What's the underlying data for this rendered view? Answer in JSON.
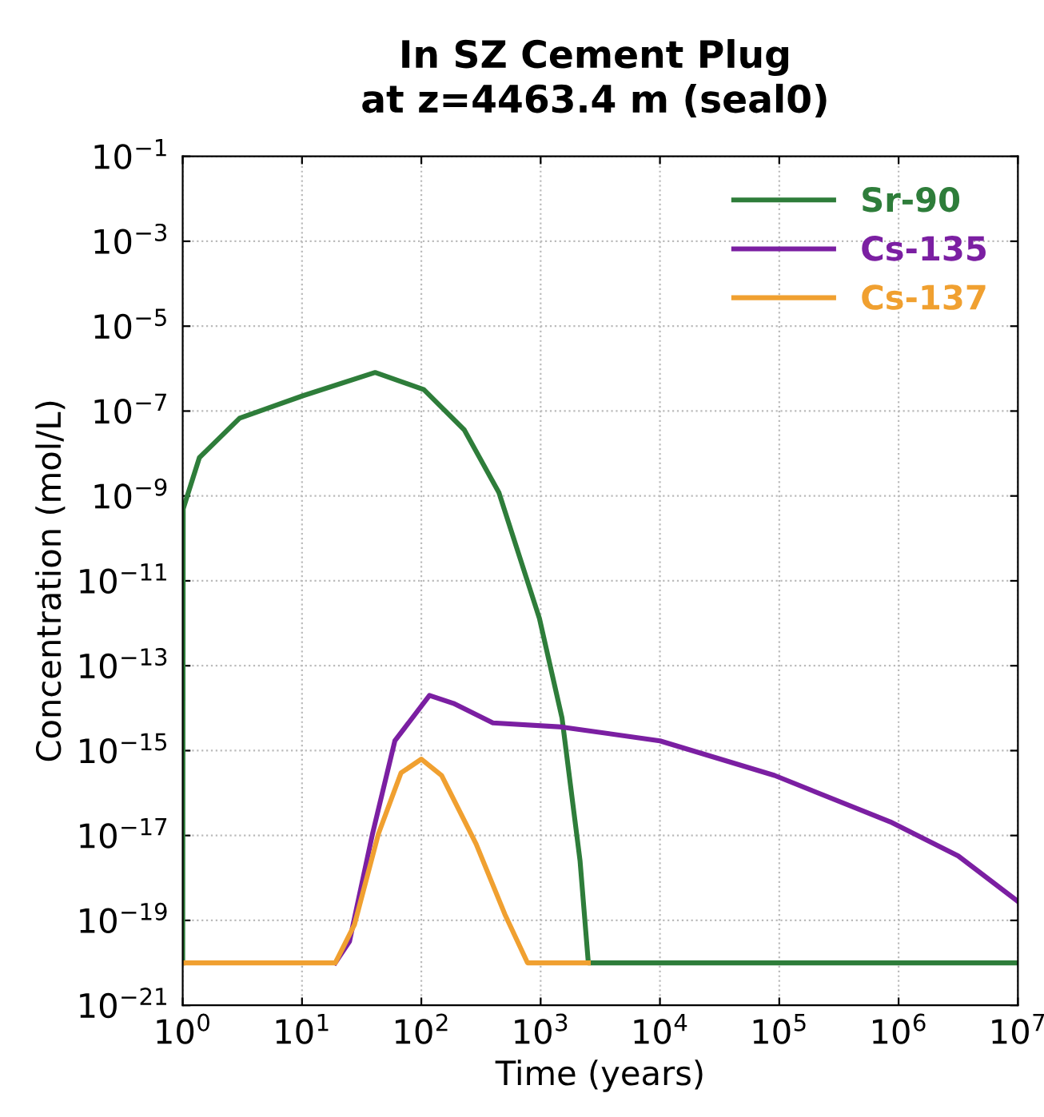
{
  "chart_data": {
    "type": "line",
    "title": "In SZ Cement Plug",
    "subtitle": "at z=4463.4 m (seal0)",
    "xlabel": "Time (years)",
    "ylabel": "Concentration (mol/L)",
    "log": "xy",
    "grid": true,
    "legend": "top right",
    "line_style": "solid",
    "marker": "none",
    "xlim": [
      1,
      10000000
    ],
    "ylim": [
      1e-21,
      0.1
    ],
    "xticks": [
      {
        "value": 1,
        "label": "10$^{0}$"
      },
      {
        "value": 10,
        "label": "10$^{1}$"
      },
      {
        "value": 100,
        "label": "10$^{2}$"
      },
      {
        "value": 1000,
        "label": "10$^{3}$"
      },
      {
        "value": 10000,
        "label": "10$^{4}$"
      },
      {
        "value": 100000,
        "label": "10$^{5}$"
      },
      {
        "value": 1000000,
        "label": "10$^{6}$"
      },
      {
        "value": 10000000,
        "label": "10$^{7}$"
      }
    ],
    "yticks": [
      {
        "value": 1e-21,
        "label": "10$^{−21}$"
      },
      {
        "value": 1e-19,
        "label": "10$^{−19}$"
      },
      {
        "value": 1e-17,
        "label": "10$^{−17}$"
      },
      {
        "value": 1e-15,
        "label": "10$^{−15}$"
      },
      {
        "value": 1e-13,
        "label": "10$^{−13}$"
      },
      {
        "value": 1e-11,
        "label": "10$^{−11}$"
      },
      {
        "value": 1e-09,
        "label": "10$^{−9}$"
      },
      {
        "value": 1e-07,
        "label": "10$^{−7}$"
      },
      {
        "value": 1e-05,
        "label": "10$^{−5}$"
      },
      {
        "value": 0.001,
        "label": "10$^{−3}$"
      },
      {
        "value": 0.1,
        "label": "10$^{−1}$"
      }
    ],
    "series": [
      {
        "name": "Sr-90",
        "color": "#2e7d3a",
        "x": [
          1,
          1.01,
          1.38,
          3.0,
          10.2,
          41,
          105,
          229,
          447,
          977,
          1510,
          2140,
          2510,
          10000000
        ],
        "values": [
          1e-20,
          5e-10,
          8e-09,
          6.8e-08,
          2.3e-07,
          8.1e-07,
          3.2e-07,
          3.6e-08,
          1.2e-09,
          1.3e-12,
          5.9e-15,
          2.5e-18,
          1e-20,
          1e-20
        ]
      },
      {
        "name": "Cs-135",
        "color": "#7b1fa2",
        "x": [
          19,
          25,
          39,
          60,
          117,
          186,
          398,
          1510,
          10000,
          91200,
          851000,
          3160000,
          10000000
        ],
        "values": [
          1e-20,
          3.2e-20,
          1.1e-17,
          1.7e-15,
          2e-14,
          1.3e-14,
          4.5e-15,
          3.6e-15,
          1.7e-15,
          2.6e-16,
          2.1e-17,
          3.3e-18,
          2.8e-19
        ]
      },
      {
        "name": "Cs-137",
        "color": "#f0a030",
        "x": [
          1,
          19,
          27.5,
          43.7,
          67.6,
          100,
          148,
          288,
          501,
          776,
          2510
        ],
        "values": [
          1e-20,
          1e-20,
          7.9e-20,
          1.1e-17,
          3e-16,
          6.3e-16,
          2.6e-16,
          6.3e-18,
          1.4e-19,
          1e-20,
          1e-20
        ]
      }
    ]
  }
}
